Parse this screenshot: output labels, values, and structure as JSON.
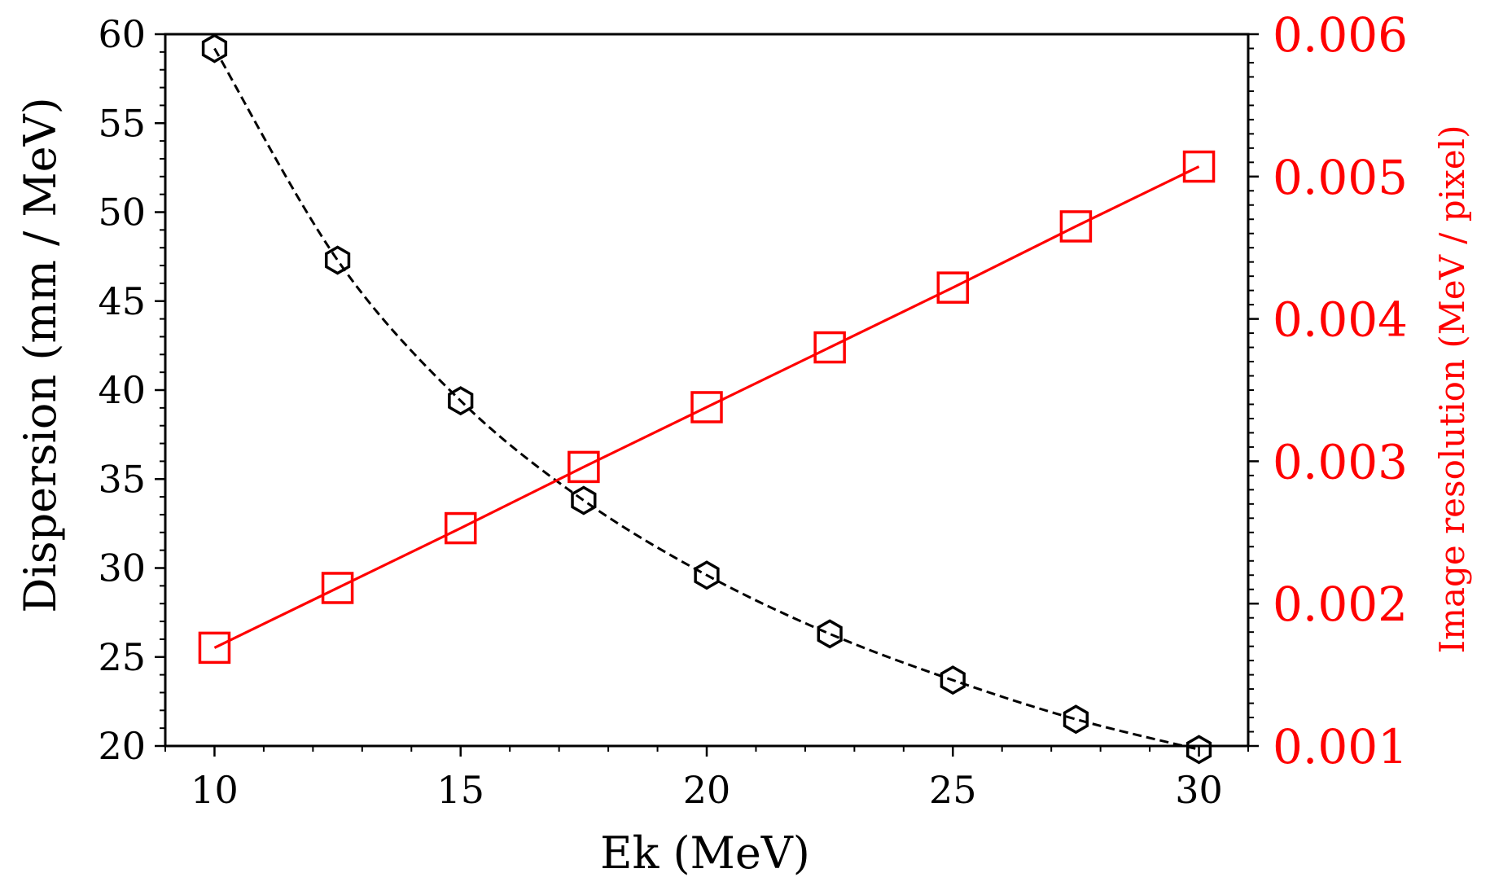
{
  "chart_data": {
    "type": "line",
    "title": "",
    "xlabel": "Ek (MeV)",
    "ylabel": "Dispersion (mm / MeV)",
    "ylabel_right": "Image resolution (MeV / pixel)",
    "xlim": [
      9,
      31
    ],
    "ylim": [
      20,
      60
    ],
    "ylim_right": [
      0.001,
      0.006
    ],
    "x_ticks": [
      10,
      15,
      20,
      25,
      30
    ],
    "x_tick_labels": [
      "10",
      "15",
      "20",
      "25",
      "30"
    ],
    "y_ticks": [
      20,
      25,
      30,
      35,
      40,
      45,
      50,
      55,
      60
    ],
    "y_tick_labels": [
      "20",
      "25",
      "30",
      "35",
      "40",
      "45",
      "50",
      "55",
      "60"
    ],
    "y_right_ticks": [
      0.001,
      0.002,
      0.003,
      0.004,
      0.005,
      0.006
    ],
    "y_right_tick_labels": [
      "0.001",
      "0.002",
      "0.003",
      "0.004",
      "0.005",
      "0.006"
    ],
    "x": [
      10,
      12.5,
      15,
      17.5,
      20,
      22.5,
      25,
      27.5,
      30
    ],
    "series": [
      {
        "name": "Dispersion",
        "axis": "left",
        "color": "#000000",
        "linestyle": "dashed",
        "marker": "hexagon",
        "values": [
          59.2,
          47.3,
          39.4,
          33.8,
          29.6,
          26.3,
          23.7,
          21.5,
          19.8
        ]
      },
      {
        "name": "Image resolution",
        "axis": "right",
        "color": "#ff0000",
        "linestyle": "solid",
        "marker": "square",
        "values": [
          0.00169,
          0.00211,
          0.00253,
          0.00296,
          0.00338,
          0.0038,
          0.00422,
          0.00465,
          0.00507
        ]
      }
    ],
    "grid": false,
    "legend": "none"
  }
}
